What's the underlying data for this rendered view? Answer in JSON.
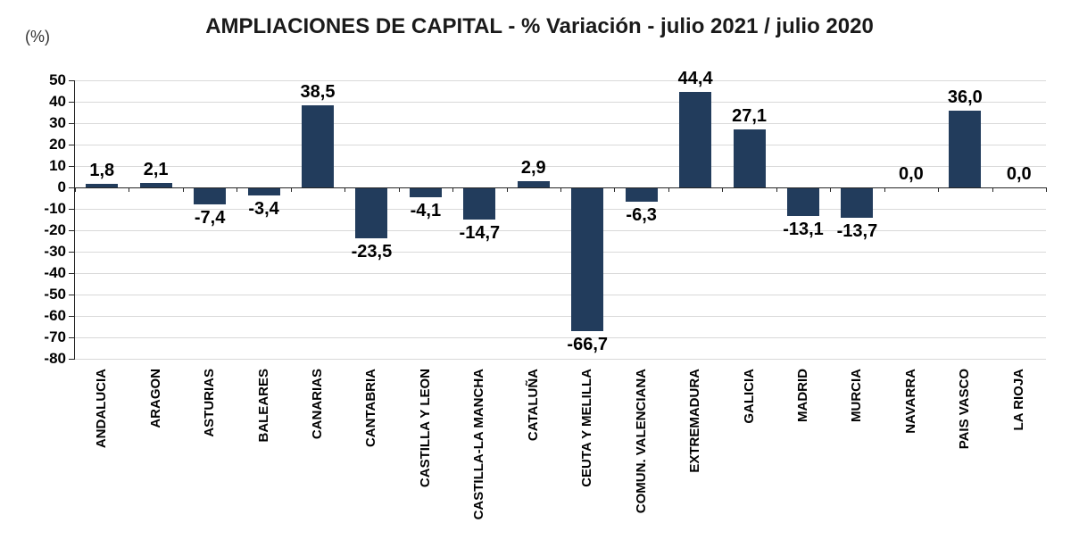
{
  "chart_data": {
    "type": "bar",
    "title": "AMPLIACIONES DE CAPITAL - % Variación - julio 2021 / julio 2020",
    "unit_label": "(%)",
    "categories": [
      "ANDALUCIA",
      "ARAGON",
      "ASTURIAS",
      "BALEARES",
      "CANARIAS",
      "CANTABRIA",
      "CASTILLA Y LEON",
      "CASTILLA-LA MANCHA",
      "CATALUÑA",
      "CEUTA Y MELILLA",
      "COMUN. VALENCIANA",
      "EXTREMADURA",
      "GALICIA",
      "MADRID",
      "MURCIA",
      "NAVARRA",
      "PAIS VASCO",
      "LA RIOJA"
    ],
    "values": [
      1.8,
      2.1,
      -7.4,
      -3.4,
      38.5,
      -23.5,
      -4.1,
      -14.7,
      2.9,
      -66.7,
      -6.3,
      44.4,
      27.1,
      -13.1,
      -13.7,
      0.0,
      36.0,
      0.0
    ],
    "value_labels": [
      "1,8",
      "2,1",
      "-7,4",
      "-3,4",
      "38,5",
      "-23,5",
      "-4,1",
      "-14,7",
      "2,9",
      "-66,7",
      "-6,3",
      "44,4",
      "27,1",
      "-13,1",
      "-13,7",
      "0,0",
      "36,0",
      "0,0"
    ],
    "yticks": [
      50,
      40,
      30,
      20,
      10,
      0,
      -10,
      -20,
      -30,
      -40,
      -50,
      -60,
      -70,
      -80
    ],
    "ylim": [
      -80,
      50
    ],
    "ytick_step": 10,
    "grid": true,
    "legend": false,
    "xlabel": "",
    "ylabel": "(%)",
    "colors": {
      "bar": "#223C5C",
      "gridline": "#D9D9D9",
      "axis": "#262626",
      "text": "#000000",
      "background": "#FFFFFF"
    }
  }
}
